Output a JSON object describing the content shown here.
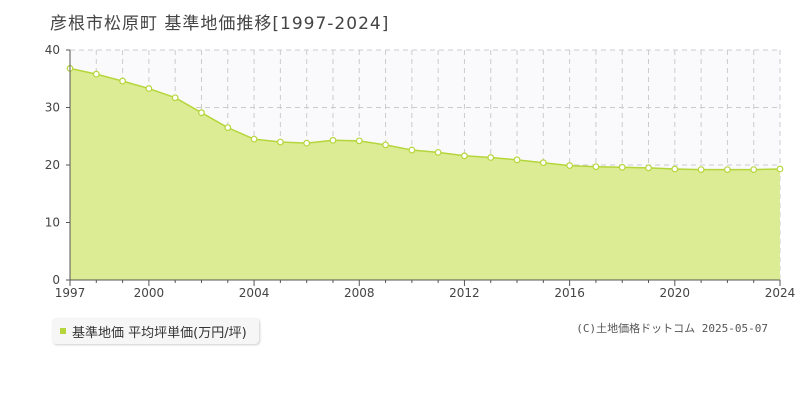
{
  "title": "彦根市松原町 基準地価推移[1997-2024]",
  "legend": {
    "label": "基準地価 平均坪単価(万円/坪)",
    "color": "#b5d63a"
  },
  "credit": "(C)土地価格ドットコム 2025-05-07",
  "colors": {
    "area_fill": "#dcec94",
    "line": "#b5d63a",
    "marker_fill": "#ffffff",
    "grid": "#cccccc",
    "plot_bg": "#faf9fc"
  },
  "chart_data": {
    "type": "area",
    "x": [
      1997,
      1998,
      1999,
      2000,
      2001,
      2002,
      2003,
      2004,
      2005,
      2006,
      2007,
      2008,
      2009,
      2010,
      2011,
      2012,
      2013,
      2014,
      2015,
      2016,
      2017,
      2018,
      2019,
      2020,
      2021,
      2022,
      2023,
      2024
    ],
    "series": [
      {
        "values": [
          36.8,
          35.8,
          34.6,
          33.3,
          31.7,
          29.1,
          26.5,
          24.5,
          24.0,
          23.8,
          24.3,
          24.2,
          23.5,
          22.6,
          22.2,
          21.6,
          21.3,
          20.9,
          20.4,
          19.9,
          19.7,
          19.6,
          19.5,
          19.3,
          19.2,
          19.2,
          19.2,
          19.3
        ]
      }
    ],
    "xlim": [
      1997,
      2024
    ],
    "ylim": [
      0,
      40
    ],
    "xticks": [
      1997,
      2000,
      2004,
      2008,
      2012,
      2016,
      2020,
      2024
    ],
    "yticks": [
      0,
      10,
      20,
      30,
      40
    ],
    "grid": true,
    "legend_position": "bottom-left"
  }
}
